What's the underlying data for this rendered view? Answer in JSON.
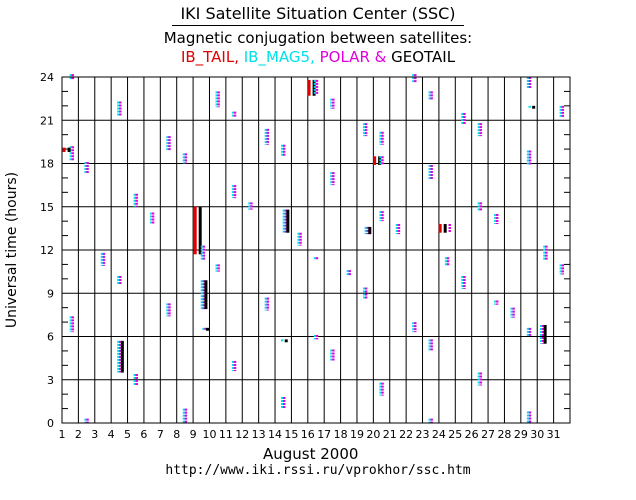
{
  "header": {
    "title": "IKI Satellite Situation Center (SSC)",
    "subtitle": "Magnetic conjugation between satellites:"
  },
  "footer": {
    "xlabel": "August    2000",
    "url": "http://www.iki.rssi.ru/vprokhor/ssc.htm"
  },
  "colors": {
    "ib_tail": "#e00000",
    "ib_mag5": "#00e0e8",
    "polar": "#e000e0",
    "geotail": "#000000",
    "grid": "#000000"
  },
  "chart_data": {
    "type": "scatter",
    "title": "IKI Satellite Situation Center (SSC)",
    "subtitle": "Magnetic conjugation between satellites:",
    "xlabel": "August    2000",
    "ylabel": "Universal time (hours)",
    "xlim": [
      1,
      32
    ],
    "ylim": [
      0,
      24
    ],
    "xticks": [
      1,
      2,
      3,
      4,
      5,
      6,
      7,
      8,
      9,
      10,
      11,
      12,
      13,
      14,
      15,
      16,
      17,
      18,
      19,
      20,
      21,
      22,
      23,
      24,
      25,
      26,
      27,
      28,
      29,
      30,
      31
    ],
    "yticks": [
      0,
      3,
      6,
      9,
      12,
      15,
      18,
      21,
      24
    ],
    "grid": true,
    "legend": [
      {
        "name": "IB_TAIL",
        "color": "#e00000",
        "sep": ", "
      },
      {
        "name": "IB_MAG5",
        "color": "#00e0e8",
        "sep": ", "
      },
      {
        "name": "POLAR",
        "color": "#e000e0",
        "sep": " & "
      },
      {
        "name": "GEOTAIL",
        "color": "#000000",
        "sep": ""
      }
    ],
    "events": [
      {
        "x": 1.6,
        "y1": 23.8,
        "y2": 24.2,
        "sats": [
          "IB_MAG5",
          "POLAR"
        ]
      },
      {
        "x": 1.6,
        "y1": 18.2,
        "y2": 19.2,
        "sats": [
          "IB_MAG5",
          "POLAR"
        ]
      },
      {
        "x": 1.25,
        "y1": 18.8,
        "y2": 19.1,
        "sats": [
          "IB_TAIL",
          "GEOTAIL"
        ]
      },
      {
        "x": 1.6,
        "y1": 6.3,
        "y2": 7.4,
        "sats": [
          "IB_MAG5",
          "POLAR"
        ]
      },
      {
        "x": 2.5,
        "y1": 17.3,
        "y2": 18.1,
        "sats": [
          "IB_MAG5",
          "POLAR"
        ]
      },
      {
        "x": 2.5,
        "y1": 0.0,
        "y2": 0.3,
        "sats": [
          "IB_MAG5",
          "POLAR"
        ]
      },
      {
        "x": 3.5,
        "y1": 10.9,
        "y2": 11.8,
        "sats": [
          "IB_MAG5",
          "POLAR"
        ]
      },
      {
        "x": 4.5,
        "y1": 21.3,
        "y2": 22.3,
        "sats": [
          "IB_MAG5",
          "POLAR"
        ]
      },
      {
        "x": 4.5,
        "y1": 9.6,
        "y2": 10.2,
        "sats": [
          "IB_MAG5",
          "POLAR"
        ]
      },
      {
        "x": 4.5,
        "y1": 3.5,
        "y2": 5.7,
        "sats": [
          "IB_MAG5",
          "POLAR",
          "GEOTAIL"
        ]
      },
      {
        "x": 5.5,
        "y1": 15.0,
        "y2": 15.9,
        "sats": [
          "IB_MAG5",
          "POLAR"
        ]
      },
      {
        "x": 5.5,
        "y1": 2.6,
        "y2": 3.4,
        "sats": [
          "IB_MAG5",
          "POLAR"
        ]
      },
      {
        "x": 6.5,
        "y1": 13.8,
        "y2": 14.6,
        "sats": [
          "IB_MAG5",
          "POLAR"
        ]
      },
      {
        "x": 7.5,
        "y1": 18.9,
        "y2": 19.9,
        "sats": [
          "IB_MAG5",
          "POLAR"
        ]
      },
      {
        "x": 7.5,
        "y1": 7.4,
        "y2": 8.3,
        "sats": [
          "IB_MAG5",
          "POLAR"
        ]
      },
      {
        "x": 8.5,
        "y1": 18.0,
        "y2": 18.7,
        "sats": [
          "IB_MAG5",
          "POLAR"
        ]
      },
      {
        "x": 8.5,
        "y1": 0.0,
        "y2": 1.0,
        "sats": [
          "IB_MAG5",
          "POLAR"
        ]
      },
      {
        "x": 9.25,
        "y1": 11.7,
        "y2": 15.0,
        "sats": [
          "IB_TAIL",
          "GEOTAIL"
        ]
      },
      {
        "x": 9.6,
        "y1": 11.3,
        "y2": 12.3,
        "sats": [
          "IB_MAG5",
          "POLAR"
        ]
      },
      {
        "x": 9.6,
        "y1": 7.9,
        "y2": 9.9,
        "sats": [
          "IB_MAG5",
          "POLAR",
          "GEOTAIL"
        ]
      },
      {
        "x": 9.7,
        "y1": 6.4,
        "y2": 6.6,
        "sats": [
          "IB_MAG5",
          "POLAR",
          "GEOTAIL"
        ]
      },
      {
        "x": 10.5,
        "y1": 21.9,
        "y2": 23.0,
        "sats": [
          "IB_MAG5",
          "POLAR"
        ]
      },
      {
        "x": 10.5,
        "y1": 10.5,
        "y2": 11.0,
        "sats": [
          "IB_MAG5",
          "POLAR"
        ]
      },
      {
        "x": 11.5,
        "y1": 21.2,
        "y2": 21.6,
        "sats": [
          "IB_MAG5",
          "POLAR"
        ]
      },
      {
        "x": 11.5,
        "y1": 15.6,
        "y2": 16.5,
        "sats": [
          "IB_MAG5",
          "POLAR"
        ]
      },
      {
        "x": 11.5,
        "y1": 3.6,
        "y2": 4.3,
        "sats": [
          "IB_MAG5",
          "POLAR"
        ]
      },
      {
        "x": 12.5,
        "y1": 14.8,
        "y2": 15.3,
        "sats": [
          "IB_MAG5",
          "POLAR"
        ]
      },
      {
        "x": 13.5,
        "y1": 19.3,
        "y2": 20.4,
        "sats": [
          "IB_MAG5",
          "POLAR"
        ]
      },
      {
        "x": 13.5,
        "y1": 7.8,
        "y2": 8.7,
        "sats": [
          "IB_MAG5",
          "POLAR"
        ]
      },
      {
        "x": 14.5,
        "y1": 18.5,
        "y2": 19.3,
        "sats": [
          "IB_MAG5",
          "POLAR"
        ]
      },
      {
        "x": 14.6,
        "y1": 13.2,
        "y2": 14.8,
        "sats": [
          "IB_MAG5",
          "POLAR",
          "GEOTAIL"
        ]
      },
      {
        "x": 14.5,
        "y1": 5.6,
        "y2": 5.8,
        "sats": [
          "IB_MAG5",
          "GEOTAIL"
        ]
      },
      {
        "x": 14.5,
        "y1": 1.0,
        "y2": 1.8,
        "sats": [
          "IB_MAG5",
          "POLAR"
        ]
      },
      {
        "x": 15.5,
        "y1": 12.3,
        "y2": 13.2,
        "sats": [
          "IB_MAG5",
          "POLAR"
        ]
      },
      {
        "x": 16.2,
        "y1": 22.7,
        "y2": 23.8,
        "sats": [
          "IB_TAIL",
          "GEOTAIL"
        ]
      },
      {
        "x": 16.5,
        "y1": 22.8,
        "y2": 23.8,
        "sats": [
          "IB_MAG5",
          "POLAR"
        ]
      },
      {
        "x": 16.5,
        "y1": 11.3,
        "y2": 11.5,
        "sats": [
          "IB_MAG5",
          "POLAR"
        ]
      },
      {
        "x": 16.5,
        "y1": 5.8,
        "y2": 6.1,
        "sats": [
          "IB_MAG5",
          "POLAR"
        ]
      },
      {
        "x": 17.5,
        "y1": 21.8,
        "y2": 22.5,
        "sats": [
          "IB_MAG5",
          "POLAR"
        ]
      },
      {
        "x": 17.5,
        "y1": 16.5,
        "y2": 17.4,
        "sats": [
          "IB_MAG5",
          "POLAR"
        ]
      },
      {
        "x": 17.5,
        "y1": 4.3,
        "y2": 5.1,
        "sats": [
          "IB_MAG5",
          "POLAR"
        ]
      },
      {
        "x": 18.5,
        "y1": 10.2,
        "y2": 10.6,
        "sats": [
          "IB_MAG5",
          "POLAR"
        ]
      },
      {
        "x": 19.5,
        "y1": 19.9,
        "y2": 20.8,
        "sats": [
          "IB_MAG5",
          "POLAR"
        ]
      },
      {
        "x": 19.5,
        "y1": 8.6,
        "y2": 9.4,
        "sats": [
          "IB_MAG5",
          "POLAR"
        ]
      },
      {
        "x": 19.6,
        "y1": 13.1,
        "y2": 13.6,
        "sats": [
          "IB_MAG5",
          "POLAR",
          "GEOTAIL"
        ]
      },
      {
        "x": 20.2,
        "y1": 17.9,
        "y2": 18.5,
        "sats": [
          "IB_TAIL",
          "GEOTAIL"
        ]
      },
      {
        "x": 20.5,
        "y1": 17.9,
        "y2": 18.5,
        "sats": [
          "IB_MAG5",
          "POLAR"
        ]
      },
      {
        "x": 20.5,
        "y1": 19.3,
        "y2": 20.2,
        "sats": [
          "IB_MAG5",
          "POLAR"
        ]
      },
      {
        "x": 20.5,
        "y1": 14.0,
        "y2": 14.7,
        "sats": [
          "IB_MAG5",
          "POLAR"
        ]
      },
      {
        "x": 20.5,
        "y1": 1.9,
        "y2": 2.8,
        "sats": [
          "IB_MAG5",
          "POLAR"
        ]
      },
      {
        "x": 21.5,
        "y1": 13.1,
        "y2": 13.8,
        "sats": [
          "IB_MAG5",
          "POLAR"
        ]
      },
      {
        "x": 22.5,
        "y1": 23.6,
        "y2": 24.2,
        "sats": [
          "IB_MAG5",
          "POLAR"
        ]
      },
      {
        "x": 22.5,
        "y1": 6.3,
        "y2": 7.0,
        "sats": [
          "IB_MAG5",
          "POLAR"
        ]
      },
      {
        "x": 23.5,
        "y1": 22.4,
        "y2": 23.0,
        "sats": [
          "IB_MAG5",
          "POLAR"
        ]
      },
      {
        "x": 23.5,
        "y1": 16.9,
        "y2": 17.9,
        "sats": [
          "IB_MAG5",
          "POLAR"
        ]
      },
      {
        "x": 23.5,
        "y1": 5.0,
        "y2": 5.8,
        "sats": [
          "IB_MAG5",
          "POLAR"
        ]
      },
      {
        "x": 23.5,
        "y1": 0.0,
        "y2": 0.3,
        "sats": [
          "IB_MAG5",
          "POLAR"
        ]
      },
      {
        "x": 24.2,
        "y1": 13.2,
        "y2": 13.8,
        "sats": [
          "IB_TAIL",
          "GEOTAIL"
        ]
      },
      {
        "x": 24.6,
        "y1": 13.2,
        "y2": 13.8,
        "sats": [
          "POLAR"
        ]
      },
      {
        "x": 24.5,
        "y1": 10.9,
        "y2": 11.5,
        "sats": [
          "IB_MAG5",
          "POLAR"
        ]
      },
      {
        "x": 25.5,
        "y1": 20.7,
        "y2": 21.5,
        "sats": [
          "IB_MAG5",
          "POLAR"
        ]
      },
      {
        "x": 25.5,
        "y1": 9.3,
        "y2": 10.2,
        "sats": [
          "IB_MAG5",
          "POLAR"
        ]
      },
      {
        "x": 26.5,
        "y1": 19.9,
        "y2": 20.8,
        "sats": [
          "IB_MAG5",
          "POLAR"
        ]
      },
      {
        "x": 26.5,
        "y1": 14.7,
        "y2": 15.3,
        "sats": [
          "IB_MAG5",
          "POLAR"
        ]
      },
      {
        "x": 26.5,
        "y1": 2.6,
        "y2": 3.5,
        "sats": [
          "IB_MAG5",
          "POLAR"
        ]
      },
      {
        "x": 27.5,
        "y1": 13.8,
        "y2": 14.5,
        "sats": [
          "IB_MAG5",
          "POLAR"
        ]
      },
      {
        "x": 27.5,
        "y1": 8.2,
        "y2": 8.5,
        "sats": [
          "IB_MAG5",
          "POLAR"
        ]
      },
      {
        "x": 28.5,
        "y1": 7.3,
        "y2": 8.0,
        "sats": [
          "IB_MAG5",
          "POLAR"
        ]
      },
      {
        "x": 29.5,
        "y1": 23.2,
        "y2": 24.0,
        "sats": [
          "IB_MAG5",
          "POLAR"
        ]
      },
      {
        "x": 29.5,
        "y1": 17.9,
        "y2": 18.9,
        "sats": [
          "IB_MAG5",
          "POLAR"
        ]
      },
      {
        "x": 29.6,
        "y1": 21.8,
        "y2": 22.0,
        "sats": [
          "IB_MAG5",
          "GEOTAIL"
        ]
      },
      {
        "x": 29.5,
        "y1": 6.0,
        "y2": 6.6,
        "sats": [
          "IB_MAG5",
          "POLAR"
        ]
      },
      {
        "x": 29.5,
        "y1": 0.0,
        "y2": 0.8,
        "sats": [
          "IB_MAG5",
          "POLAR"
        ]
      },
      {
        "x": 30.3,
        "y1": 5.5,
        "y2": 6.8,
        "sats": [
          "IB_MAG5",
          "POLAR",
          "GEOTAIL"
        ]
      },
      {
        "x": 30.5,
        "y1": 11.3,
        "y2": 12.3,
        "sats": [
          "IB_MAG5",
          "POLAR"
        ]
      },
      {
        "x": 31.5,
        "y1": 21.2,
        "y2": 22.0,
        "sats": [
          "IB_MAG5",
          "POLAR"
        ]
      },
      {
        "x": 31.5,
        "y1": 10.3,
        "y2": 11.0,
        "sats": [
          "IB_MAG5",
          "POLAR"
        ]
      }
    ]
  }
}
